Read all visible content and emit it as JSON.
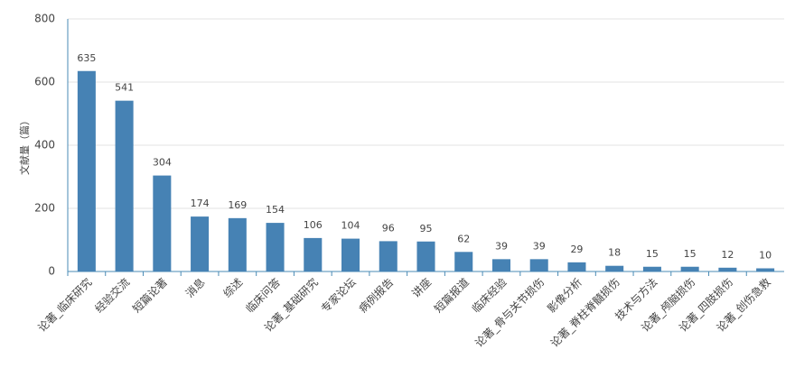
{
  "chart_data": {
    "type": "bar",
    "y_label": "文献量（篇）",
    "categories": [
      "论著_临床研究",
      "经验交流",
      "短篇论著",
      "消息",
      "综述",
      "临床问答",
      "论著_基础研究",
      "专家论坛",
      "病例报告",
      "讲座",
      "短篇报道",
      "临床经验",
      "论著_骨与关节损伤",
      "影像分析",
      "论著_脊柱脊髓损伤",
      "技术与方法",
      "论著_颅脑损伤",
      "论著_四肢损伤",
      "论著_创伤急救"
    ],
    "values": [
      635,
      541,
      304,
      174,
      169,
      154,
      106,
      104,
      96,
      95,
      62,
      39,
      39,
      29,
      18,
      15,
      15,
      12,
      10
    ],
    "color": "#4682b4",
    "ylim": [
      0,
      800
    ],
    "yticks": [
      0,
      200,
      400,
      600,
      800
    ],
    "grid": true
  }
}
